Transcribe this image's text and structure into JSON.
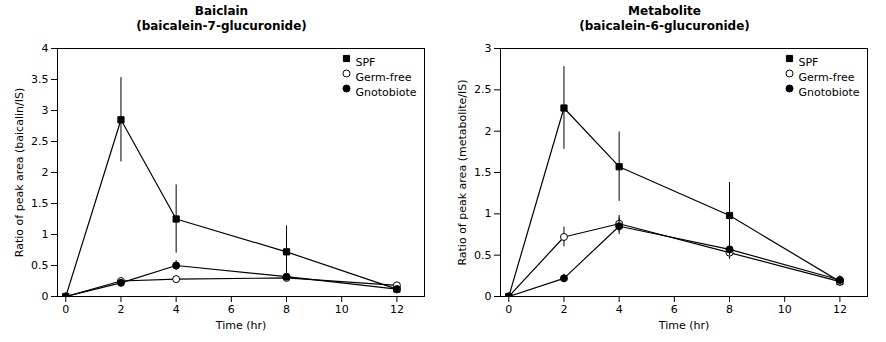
{
  "chart_data": [
    {
      "type": "line",
      "title": "Baiclain\n(baicalein-7-glucuronide)",
      "x_label": "Time (hr)",
      "y_label": "Ratio of peak area (baicalin/IS)",
      "x": [
        0,
        2,
        4,
        8,
        12
      ],
      "xlim": [
        -0.3,
        13
      ],
      "xticks": [
        0,
        2,
        4,
        6,
        8,
        10,
        12
      ],
      "ylim": [
        0,
        4
      ],
      "yticks": [
        0,
        0.5,
        1,
        1.5,
        2,
        2.5,
        3,
        3.5,
        4
      ],
      "legend": "upper right",
      "series": [
        {
          "name": "SPF",
          "color": "#000000",
          "marker": "square",
          "values": [
            0.0,
            2.85,
            1.25,
            0.72,
            0.12
          ],
          "error": [
            0.0,
            0.68,
            0.55,
            0.42,
            0.08
          ]
        },
        {
          "name": "Germ-free",
          "color": "#000000",
          "marker": "circle-open",
          "values": [
            0.0,
            0.25,
            0.28,
            0.3,
            0.18
          ],
          "error": [
            0.0,
            0.05,
            0.05,
            0.05,
            0.04
          ]
        },
        {
          "name": "Gnotobiote",
          "color": "#000000",
          "marker": "circle",
          "values": [
            0.0,
            0.22,
            0.5,
            0.32,
            0.12
          ],
          "error": [
            0.0,
            0.05,
            0.08,
            0.06,
            0.04
          ]
        }
      ]
    },
    {
      "type": "line",
      "title": "Metabolite\n(baicalein-6-glucuronide)",
      "x_label": "Time (hr)",
      "y_label": "Ratio of peak area (metabolite/IS)",
      "x": [
        0,
        2,
        4,
        8,
        12
      ],
      "xlim": [
        -0.3,
        13
      ],
      "xticks": [
        0,
        2,
        4,
        6,
        8,
        10,
        12
      ],
      "ylim": [
        0,
        3
      ],
      "yticks": [
        0,
        0.5,
        1,
        1.5,
        2,
        2.5,
        3
      ],
      "legend": "upper right",
      "series": [
        {
          "name": "SPF",
          "color": "#000000",
          "marker": "square",
          "values": [
            0.0,
            2.28,
            1.57,
            0.98,
            0.18
          ],
          "error": [
            0.0,
            0.5,
            0.42,
            0.4,
            0.06
          ]
        },
        {
          "name": "Germ-free",
          "color": "#000000",
          "marker": "circle-open",
          "values": [
            0.0,
            0.72,
            0.88,
            0.53,
            0.18
          ],
          "error": [
            0.0,
            0.12,
            0.1,
            0.08,
            0.05
          ]
        },
        {
          "name": "Gnotobiote",
          "color": "#000000",
          "marker": "circle",
          "values": [
            0.0,
            0.22,
            0.85,
            0.57,
            0.2
          ],
          "error": [
            0.0,
            0.05,
            0.1,
            0.08,
            0.05
          ]
        }
      ]
    }
  ]
}
